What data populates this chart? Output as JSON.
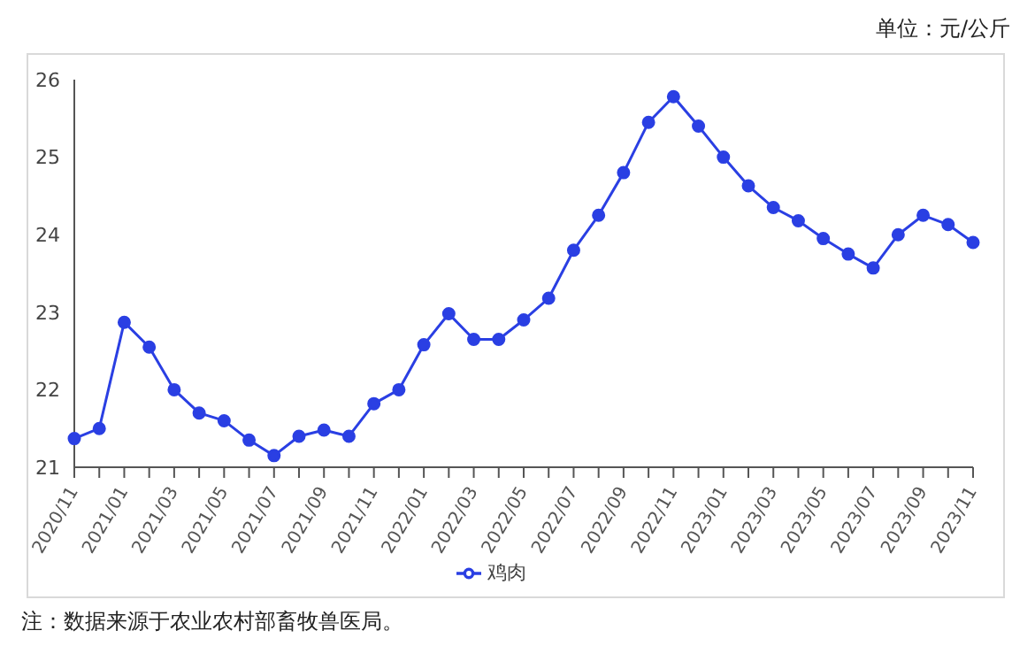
{
  "chart_data": {
    "type": "line",
    "categories": [
      "2020/11",
      null,
      "2021/01",
      null,
      "2021/03",
      null,
      "2021/05",
      null,
      "2021/07",
      null,
      "2021/09",
      null,
      "2021/11",
      null,
      "2022/01",
      null,
      "2022/03",
      null,
      "2022/05",
      null,
      "2022/07",
      null,
      "2022/09",
      null,
      "2022/11",
      null,
      "2023/01",
      null,
      "2023/03",
      null,
      "2023/05",
      null,
      "2023/07",
      null,
      "2023/09",
      null,
      "2023/11"
    ],
    "series": [
      {
        "name": "鸡肉",
        "color": "#2a3fe3",
        "values": [
          21.37,
          21.5,
          22.87,
          22.55,
          22.0,
          21.7,
          21.6,
          21.35,
          21.15,
          21.4,
          21.48,
          21.4,
          21.82,
          22.0,
          22.58,
          22.98,
          22.65,
          22.65,
          22.9,
          23.18,
          23.8,
          24.25,
          24.8,
          25.45,
          25.78,
          25.4,
          25.0,
          24.63,
          24.35,
          24.18,
          23.95,
          23.75,
          23.57,
          24.0,
          24.25,
          24.13,
          23.9
        ]
      }
    ],
    "ylim": [
      21,
      26
    ],
    "yticks": [
      21,
      22,
      23,
      24,
      25,
      26
    ],
    "grid": false,
    "legend": "bottom",
    "marker": "circle",
    "line_style": "solid",
    "annotations": [
      "单位：元/公斤",
      "注：数据来源于农业农村部畜牧兽医局。"
    ]
  }
}
